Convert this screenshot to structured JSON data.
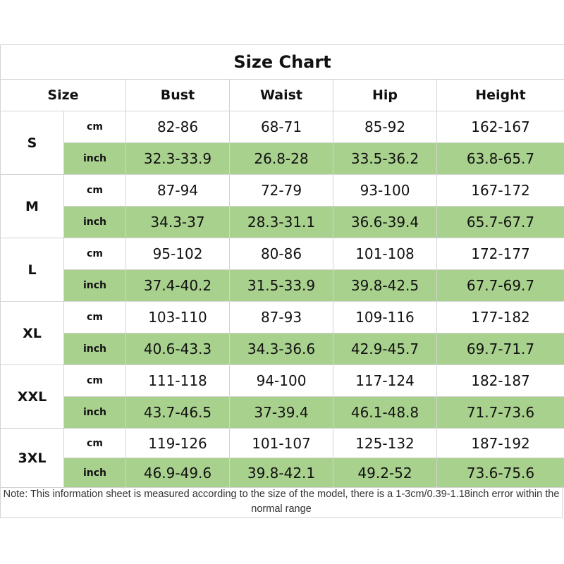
{
  "title": "Size Chart",
  "headers": [
    "Size",
    "Bust",
    "Waist",
    "Hip",
    "Height"
  ],
  "colors": {
    "inch_row_bg": "#a9d18e",
    "border": "#d4d4d4"
  },
  "sizes": [
    {
      "size": "S",
      "cm_label": "cm",
      "inch_label": "inch",
      "cm": [
        "82-86",
        "68-71",
        "85-92",
        "162-167"
      ],
      "inch": [
        "32.3-33.9",
        "26.8-28",
        "33.5-36.2",
        "63.8-65.7"
      ]
    },
    {
      "size": "M",
      "cm_label": "cm",
      "inch_label": "inch",
      "cm": [
        "87-94",
        "72-79",
        "93-100",
        "167-172"
      ],
      "inch": [
        "34.3-37",
        "28.3-31.1",
        "36.6-39.4",
        "65.7-67.7"
      ]
    },
    {
      "size": "L",
      "cm_label": "cm",
      "inch_label": "inch",
      "cm": [
        "95-102",
        "80-86",
        "101-108",
        "172-177"
      ],
      "inch": [
        "37.4-40.2",
        "31.5-33.9",
        "39.8-42.5",
        "67.7-69.7"
      ]
    },
    {
      "size": "XL",
      "cm_label": "cm",
      "inch_label": "inch",
      "cm": [
        "103-110",
        "87-93",
        "109-116",
        "177-182"
      ],
      "inch": [
        "40.6-43.3",
        "34.3-36.6",
        "42.9-45.7",
        "69.7-71.7"
      ]
    },
    {
      "size": "XXL",
      "cm_label": "cm",
      "inch_label": "inch",
      "cm": [
        "111-118",
        "94-100",
        "117-124",
        "182-187"
      ],
      "inch": [
        "43.7-46.5",
        "37-39.4",
        "46.1-48.8",
        "71.7-73.6"
      ]
    },
    {
      "size": "3XL",
      "cm_label": "cm",
      "inch_label": "inch",
      "cm": [
        "119-126",
        "101-107",
        "125-132",
        "187-192"
      ],
      "inch": [
        "46.9-49.6",
        "39.8-42.1",
        "49.2-52",
        "73.6-75.6"
      ]
    }
  ],
  "note": "Note: This information sheet is measured according to the size of the model, there is a 1-3cm/0.39-1.18inch error within the normal range"
}
